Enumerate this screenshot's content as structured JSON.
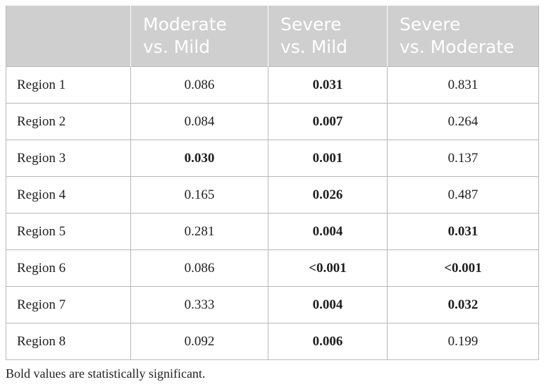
{
  "table": {
    "columns": [
      {
        "line1": "",
        "line2": ""
      },
      {
        "line1": "Moderate",
        "line2": "vs. Mild"
      },
      {
        "line1": "Severe",
        "line2": "vs. Mild"
      },
      {
        "line1": "Severe",
        "line2": "vs. Moderate"
      }
    ],
    "rows": [
      {
        "label": "Region 1",
        "cells": [
          {
            "value": "0.086",
            "bold": false
          },
          {
            "value": "0.031",
            "bold": true
          },
          {
            "value": "0.831",
            "bold": false
          }
        ]
      },
      {
        "label": "Region 2",
        "cells": [
          {
            "value": "0.084",
            "bold": false
          },
          {
            "value": "0.007",
            "bold": true
          },
          {
            "value": "0.264",
            "bold": false
          }
        ]
      },
      {
        "label": "Region 3",
        "cells": [
          {
            "value": "0.030",
            "bold": true
          },
          {
            "value": "0.001",
            "bold": true
          },
          {
            "value": "0.137",
            "bold": false
          }
        ]
      },
      {
        "label": "Region 4",
        "cells": [
          {
            "value": "0.165",
            "bold": false
          },
          {
            "value": "0.026",
            "bold": true
          },
          {
            "value": "0.487",
            "bold": false
          }
        ]
      },
      {
        "label": "Region 5",
        "cells": [
          {
            "value": "0.281",
            "bold": false
          },
          {
            "value": "0.004",
            "bold": true
          },
          {
            "value": "0.031",
            "bold": true
          }
        ]
      },
      {
        "label": "Region 6",
        "cells": [
          {
            "value": "0.086",
            "bold": false
          },
          {
            "value": "<0.001",
            "bold": true
          },
          {
            "value": "<0.001",
            "bold": true
          }
        ]
      },
      {
        "label": "Region 7",
        "cells": [
          {
            "value": "0.333",
            "bold": false
          },
          {
            "value": "0.004",
            "bold": true
          },
          {
            "value": "0.032",
            "bold": true
          }
        ]
      },
      {
        "label": "Region 8",
        "cells": [
          {
            "value": "0.092",
            "bold": false
          },
          {
            "value": "0.006",
            "bold": true
          },
          {
            "value": "0.199",
            "bold": false
          }
        ]
      }
    ]
  },
  "footnote": "Bold values are statistically significant.",
  "colors": {
    "header_bg": "#cfcfcf",
    "header_text": "#ffffff",
    "border": "#b8b8b8",
    "body_text": "#1f1f1f"
  }
}
